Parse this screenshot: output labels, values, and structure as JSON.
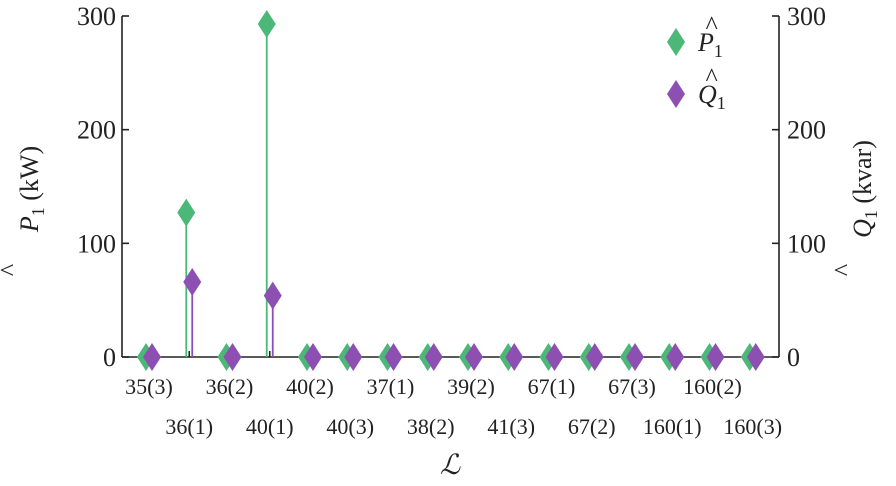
{
  "chart_data": {
    "type": "stem",
    "title": "",
    "xlabel": "ℒ",
    "ylabel_left": {
      "main": "P",
      "hat": "^",
      "sub": "1",
      "unit": " (kW)"
    },
    "ylabel_right": {
      "main": "Q",
      "hat": "^",
      "sub": "1",
      "unit": " (kvar)"
    },
    "ylim_left": [
      0,
      300
    ],
    "ylim_right": [
      0,
      300
    ],
    "yticks_left": [
      "0",
      "100",
      "200",
      "300"
    ],
    "yticks_right": [
      "0",
      "100",
      "200",
      "300"
    ],
    "ytick_values": [
      0,
      100,
      200,
      300
    ],
    "categories": [
      "35(3)",
      "36(1)",
      "36(2)",
      "40(1)",
      "40(2)",
      "40(3)",
      "37(1)",
      "38(2)",
      "39(2)",
      "41(3)",
      "67(1)",
      "67(2)",
      "67(3)",
      "160(1)",
      "160(2)",
      "160(3)"
    ],
    "series": [
      {
        "name_main": "P",
        "name_hat": "^",
        "name_sub": "1",
        "color": "#4cb878",
        "values": [
          0,
          127,
          0,
          293,
          0,
          0,
          0,
          0,
          0,
          0,
          0,
          0,
          0,
          0,
          0,
          0
        ]
      },
      {
        "name_main": "Q",
        "name_hat": "^",
        "name_sub": "1",
        "color": "#8e4fb3",
        "values": [
          0,
          66,
          0,
          54,
          0,
          0,
          0,
          0,
          0,
          0,
          0,
          0,
          0,
          0,
          0,
          0
        ]
      }
    ],
    "legend_position": "top-right",
    "grid": false
  }
}
